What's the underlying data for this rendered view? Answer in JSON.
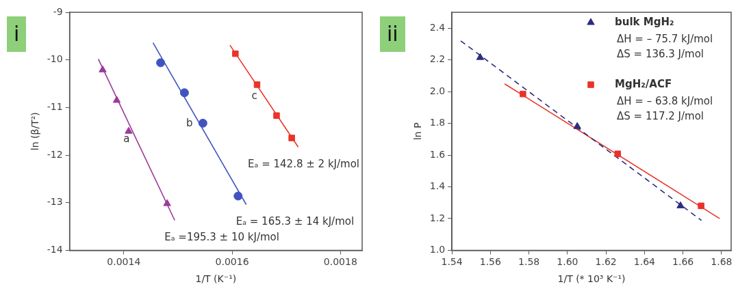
{
  "chart_data": [
    {
      "type": "scatter",
      "title": "i",
      "xlabel": "1/T (K⁻¹)",
      "ylabel": "ln (β/T²)",
      "xlim": [
        0.0013,
        0.00184
      ],
      "xticks": [
        0.0014,
        0.0016,
        0.0018
      ],
      "ylim": [
        -14,
        -9
      ],
      "yticks": [
        -14,
        -13,
        -12,
        -11,
        -10,
        -9
      ],
      "grid": false,
      "legend": false,
      "series": [
        {
          "marker": "triangle",
          "color": "#9b3a9b",
          "x": [
            0.001361,
            0.001387,
            0.001409,
            0.00148
          ],
          "values": [
            -10.21,
            -10.85,
            -11.5,
            -13.02
          ]
        },
        {
          "marker": "circle",
          "color": "#3f54c0",
          "x": [
            0.001468,
            0.001512,
            0.001546,
            0.001611
          ],
          "values": [
            -10.06,
            -10.69,
            -11.33,
            -12.86
          ]
        },
        {
          "marker": "square",
          "color": "#e8342a",
          "x": [
            0.001606,
            0.001646,
            0.001682,
            0.00171
          ],
          "values": [
            -9.87,
            -10.52,
            -11.17,
            -11.64
          ]
        },
        {
          "type": "line",
          "name": "a",
          "marker": "none",
          "line_style": "solid",
          "color": "#9b3a9b",
          "x": [
            0.001353,
            0.001494
          ],
          "values": [
            -9.98,
            -13.37
          ]
        },
        {
          "type": "line",
          "name": "b",
          "marker": "none",
          "line_style": "solid",
          "color": "#3f54c0",
          "x": [
            0.001454,
            0.001626
          ],
          "values": [
            -9.64,
            -13.04
          ]
        },
        {
          "type": "line",
          "name": "c",
          "marker": "none",
          "line_style": "solid",
          "color": "#e8342a",
          "x": [
            0.001596,
            0.001722
          ],
          "values": [
            -9.69,
            -11.83
          ]
        }
      ],
      "annotations": [
        "Eₐ =195.3 ± 10 kJ/mol",
        "Eₐ = 165.3 ± 14 kJ/mol",
        "Eₐ = 142.8 ± 2 kJ/mol"
      ]
    },
    {
      "type": "scatter",
      "title": "ii",
      "xlabel": "1/T (* 10³ K⁻¹)",
      "ylabel": "ln P",
      "xlim": [
        1.54,
        1.685
      ],
      "ylim": [
        1.0,
        2.5
      ],
      "grid": false,
      "legend": "top right",
      "xticks": [
        {
          "value": 1.54,
          "label": "1.54"
        },
        {
          "value": 1.56,
          "label": "1.56"
        },
        {
          "value": 1.58,
          "label": "1.58"
        },
        {
          "value": 1.6,
          "label": "1.60"
        },
        {
          "value": 1.62,
          "label": "1.62"
        },
        {
          "value": 1.64,
          "label": "1.64"
        },
        {
          "value": 1.66,
          "label": "1.66"
        },
        {
          "value": 1.68,
          "label": "1.68"
        }
      ],
      "yticks": [
        {
          "value": 1.0,
          "label": "1.0"
        },
        {
          "value": 1.2,
          "label": "1.2"
        },
        {
          "value": 1.4,
          "label": "1.4"
        },
        {
          "value": 1.6,
          "label": "1.6"
        },
        {
          "value": 1.8,
          "label": "1.8"
        },
        {
          "value": 2.0,
          "label": "2.0"
        },
        {
          "value": 2.2,
          "label": "2.2"
        },
        {
          "value": 2.4,
          "label": "2.4"
        }
      ],
      "series": [
        {
          "name": "bulk MgH₂",
          "marker": "triangle",
          "color": "#2a2d80",
          "x": [
            1.5547,
            1.6051,
            1.6587
          ],
          "values": [
            2.215,
            1.78,
            1.28
          ]
        },
        {
          "name": "MgH₂/ACF",
          "marker": "square",
          "color": "#e8322a",
          "x": [
            1.5769,
            1.6261,
            1.6694
          ],
          "values": [
            1.985,
            1.608,
            1.28
          ]
        },
        {
          "type": "line",
          "marker": "none",
          "line_style": "dashed",
          "color": "#2a2d80",
          "x": [
            1.5446,
            1.6696
          ],
          "values": [
            2.32,
            1.188
          ]
        },
        {
          "type": "line",
          "marker": "none",
          "line_style": "solid",
          "color": "#e8322a",
          "x": [
            1.5674,
            1.679
          ],
          "values": [
            2.049,
            1.2
          ]
        }
      ],
      "annotations": [
        "ΔH = – 75.7 kJ/mol",
        "ΔS = 136.3 J/mol",
        "ΔH = – 63.8 kJ/mol",
        "ΔS = 117.2 J/mol"
      ]
    }
  ]
}
